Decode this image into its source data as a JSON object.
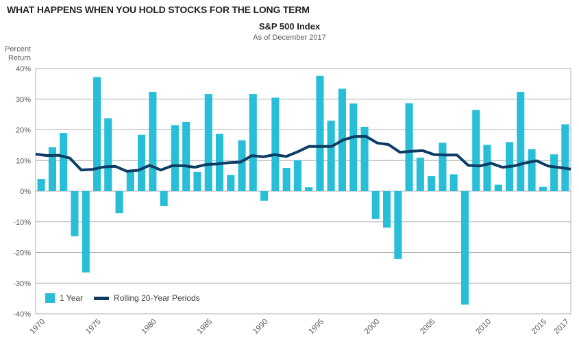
{
  "page": {
    "title": "WHAT HAPPENS WHEN YOU HOLD STOCKS FOR THE LONG TERM",
    "subtitle": "S&P 500 Index",
    "as_of": "As of December 2017",
    "y_axis_label_line1": "Percent",
    "y_axis_label_line2": "Return"
  },
  "colors": {
    "bar": "#29bed8",
    "line": "#0d3c64",
    "grid": "#aeafb4",
    "tick_text": "#58595b",
    "title_text": "#231f20"
  },
  "chart_data": {
    "type": "bar",
    "title": "S&P 500 Index",
    "subtitle": "As of December 2017",
    "ylabel": "Percent Return",
    "ylim": [
      -40,
      40
    ],
    "grid": true,
    "legend_position": "bottom-left-inside",
    "y_ticks": [
      40,
      30,
      20,
      10,
      0,
      -10,
      -20,
      -30,
      -40
    ],
    "x_tick_years": [
      1970,
      1975,
      1980,
      1985,
      1990,
      1995,
      2000,
      2005,
      2010,
      2015,
      2017
    ],
    "years": [
      1970,
      1971,
      1972,
      1973,
      1974,
      1975,
      1976,
      1977,
      1978,
      1979,
      1980,
      1981,
      1982,
      1983,
      1984,
      1985,
      1986,
      1987,
      1988,
      1989,
      1990,
      1991,
      1992,
      1993,
      1994,
      1995,
      1996,
      1997,
      1998,
      1999,
      2000,
      2001,
      2002,
      2003,
      2004,
      2005,
      2006,
      2007,
      2008,
      2009,
      2010,
      2011,
      2012,
      2013,
      2014,
      2015,
      2016,
      2017
    ],
    "series": [
      {
        "name": "1 Year",
        "type": "bar",
        "values": [
          4.0,
          14.3,
          19.0,
          -14.7,
          -26.5,
          37.2,
          23.8,
          -7.2,
          6.6,
          18.4,
          32.4,
          -4.9,
          21.5,
          22.6,
          6.3,
          31.7,
          18.7,
          5.3,
          16.6,
          31.7,
          -3.1,
          30.5,
          7.6,
          10.1,
          1.3,
          37.6,
          23.0,
          33.4,
          28.6,
          21.0,
          -9.1,
          -11.9,
          -22.1,
          28.7,
          10.9,
          4.9,
          15.8,
          5.5,
          -37.0,
          26.5,
          15.1,
          2.1,
          16.0,
          32.4,
          13.7,
          1.4,
          12.0,
          21.8
        ]
      },
      {
        "name": "Rolling 20-Year Periods",
        "type": "line",
        "values": [
          12.1,
          11.6,
          11.7,
          10.8,
          6.9,
          7.1,
          7.9,
          8.1,
          6.5,
          6.8,
          8.4,
          6.9,
          8.3,
          8.3,
          7.8,
          8.7,
          8.9,
          9.3,
          9.5,
          11.6,
          11.2,
          11.9,
          11.3,
          12.8,
          14.6,
          14.6,
          14.6,
          16.7,
          17.8,
          17.9,
          15.7,
          15.2,
          12.7,
          13.0,
          13.2,
          11.9,
          11.8,
          11.8,
          8.4,
          8.2,
          9.1,
          7.8,
          8.2,
          9.2,
          9.9,
          8.2,
          7.7,
          7.2
        ]
      }
    ]
  }
}
